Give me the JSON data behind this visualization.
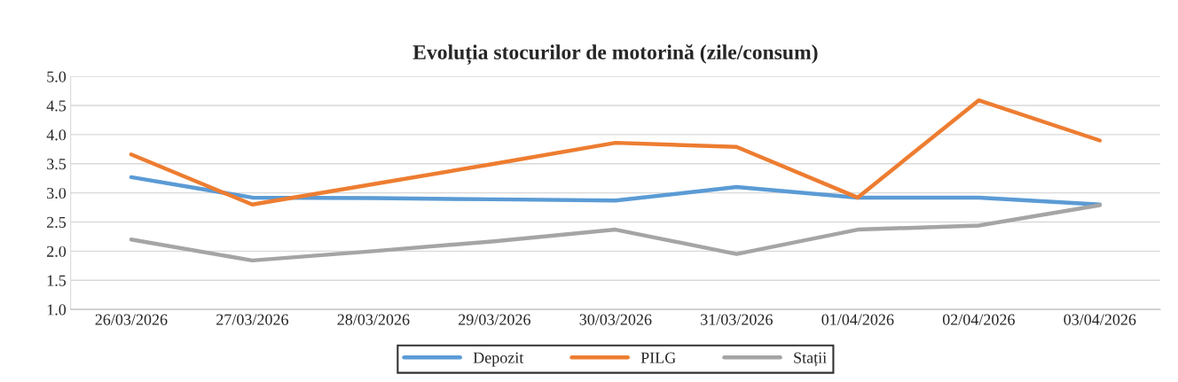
{
  "chart_data": {
    "type": "line",
    "title": "Evoluția stocurilor de motorină (zile/consum)",
    "categories": [
      "26/03/2026",
      "27/03/2026",
      "28/03/2026",
      "29/03/2026",
      "30/03/2026",
      "31/03/2026",
      "01/04/2026",
      "02/04/2026",
      "03/04/2026"
    ],
    "series": [
      {
        "name": "Depozit",
        "color": "#5b9bd5",
        "values": [
          3.27,
          2.92,
          2.91,
          2.89,
          2.87,
          3.1,
          2.92,
          2.92,
          2.8
        ]
      },
      {
        "name": "PILG",
        "color": "#ed7d31",
        "values": [
          3.66,
          2.8,
          3.15,
          3.5,
          3.86,
          3.79,
          2.92,
          4.59,
          3.9
        ]
      },
      {
        "name": "Stații",
        "color": "#a5a5a5",
        "values": [
          2.2,
          1.84,
          2.0,
          2.17,
          2.37,
          1.95,
          2.37,
          2.44,
          2.79
        ]
      }
    ],
    "ylim": [
      1.0,
      5.0
    ],
    "yticks": [
      {
        "value": 1.0,
        "label": "1.0"
      },
      {
        "value": 1.5,
        "label": "1.5"
      },
      {
        "value": 2.0,
        "label": "2.0"
      },
      {
        "value": 2.5,
        "label": "2.5"
      },
      {
        "value": 3.0,
        "label": "3.0"
      },
      {
        "value": 3.5,
        "label": "3.5"
      },
      {
        "value": 4.0,
        "label": "4.0"
      },
      {
        "value": 4.5,
        "label": "4.5"
      },
      {
        "value": 5.0,
        "label": "5.0"
      }
    ],
    "grid": "y",
    "legend": "bottom",
    "marker": "none",
    "line_style": "solid"
  }
}
